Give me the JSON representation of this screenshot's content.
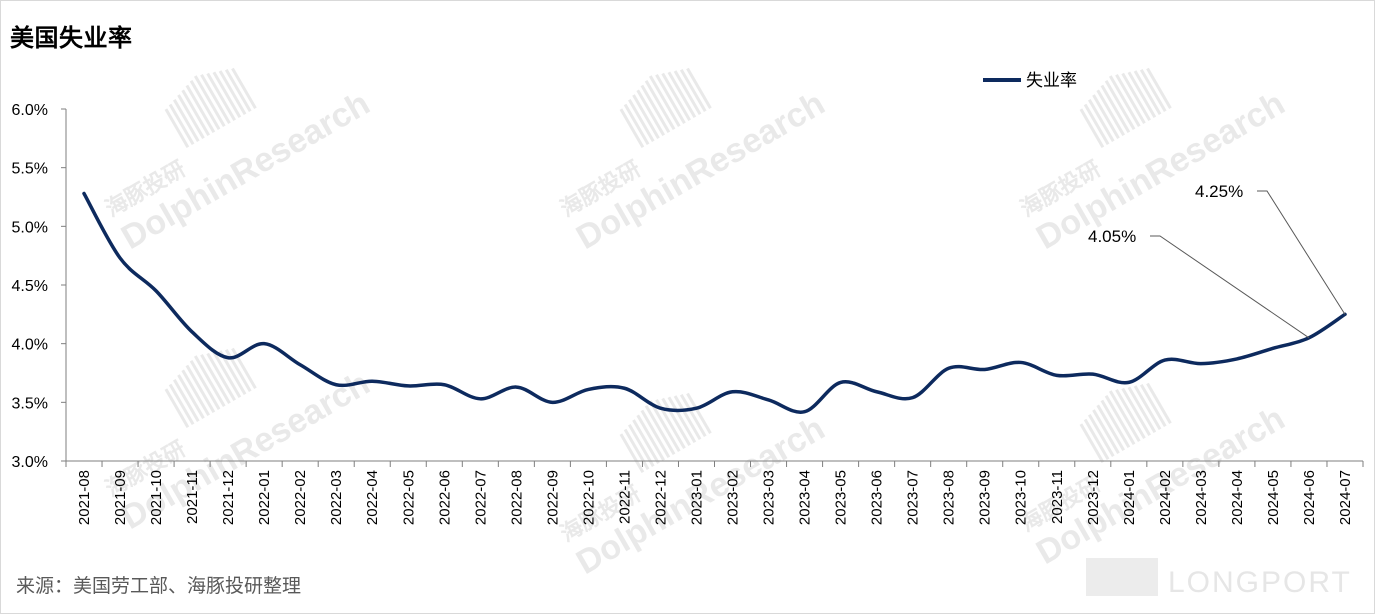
{
  "title": "美国失业率",
  "source": "来源：美国劳工部、海豚投研整理",
  "watermark": {
    "brand_en": "DolphinResearch",
    "brand_cn": "海豚投研",
    "logo": "LONGPORT"
  },
  "colors": {
    "line": "#0d2a5e",
    "axis": "#7f7f7f",
    "text": "#000000",
    "watermark": "#e9e9e9"
  },
  "chart_data": {
    "type": "line",
    "title": "美国失业率",
    "legend_position": "top-right",
    "grid": false,
    "categories": [
      "2021-08",
      "2021-09",
      "2021-10",
      "2021-11",
      "2021-12",
      "2022-01",
      "2022-02",
      "2022-03",
      "2022-04",
      "2022-05",
      "2022-06",
      "2022-07",
      "2022-08",
      "2022-09",
      "2022-10",
      "2022-11",
      "2022-12",
      "2023-01",
      "2023-02",
      "2023-03",
      "2023-04",
      "2023-05",
      "2023-06",
      "2023-07",
      "2023-08",
      "2023-09",
      "2023-10",
      "2023-11",
      "2023-12",
      "2024-01",
      "2024-02",
      "2024-03",
      "2024-04",
      "2024-05",
      "2024-06",
      "2024-07"
    ],
    "y_ticks": [
      "6.0%",
      "5.5%",
      "5.0%",
      "4.5%",
      "4.0%",
      "3.5%",
      "3.0%"
    ],
    "ylim": [
      3.0,
      6.0
    ],
    "series": [
      {
        "name": "失业率",
        "values": [
          5.28,
          4.73,
          4.45,
          4.1,
          3.88,
          4.0,
          3.82,
          3.65,
          3.68,
          3.64,
          3.65,
          3.53,
          3.63,
          3.5,
          3.61,
          3.62,
          3.45,
          3.45,
          3.59,
          3.52,
          3.42,
          3.67,
          3.59,
          3.54,
          3.79,
          3.78,
          3.84,
          3.73,
          3.74,
          3.67,
          3.86,
          3.83,
          3.87,
          3.96,
          4.05,
          4.25
        ]
      }
    ],
    "annotations": [
      {
        "text": "4.05%",
        "category": "2024-06",
        "value": 4.05
      },
      {
        "text": "4.25%",
        "category": "2024-07",
        "value": 4.25
      }
    ]
  }
}
